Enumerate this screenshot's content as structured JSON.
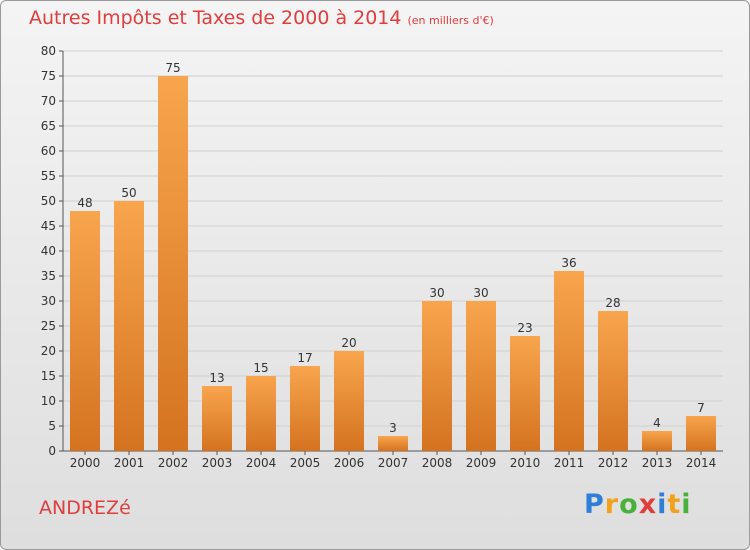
{
  "title": "Autres Impôts et Taxes de 2000 à 2014",
  "unit": "(en milliers d'€)",
  "commune": "ANDREZé",
  "brand": {
    "letters": [
      "P",
      "r",
      "o",
      "x",
      "i",
      "t",
      "i"
    ],
    "colors": [
      "#2f7fd8",
      "#f2a11c",
      "#47b13a",
      "#e03d3d",
      "#2f7fd8",
      "#f2a11c",
      "#47b13a"
    ]
  },
  "chart_data": {
    "type": "bar",
    "categories": [
      "2000",
      "2001",
      "2002",
      "2003",
      "2004",
      "2005",
      "2006",
      "2007",
      "2008",
      "2009",
      "2010",
      "2011",
      "2012",
      "2013",
      "2014"
    ],
    "values": [
      48,
      50,
      75,
      13,
      15,
      17,
      20,
      3,
      30,
      30,
      23,
      36,
      28,
      4,
      7
    ],
    "ylim": [
      0,
      80
    ],
    "yticks": [
      0,
      5,
      10,
      15,
      20,
      25,
      30,
      35,
      40,
      45,
      50,
      55,
      60,
      65,
      70,
      75,
      80
    ],
    "grid": true,
    "colors": {
      "bar_light": "#f8a54e",
      "bar_dark": "#d4731f",
      "text": "#333333",
      "grid": "#d0d0d0"
    }
  }
}
